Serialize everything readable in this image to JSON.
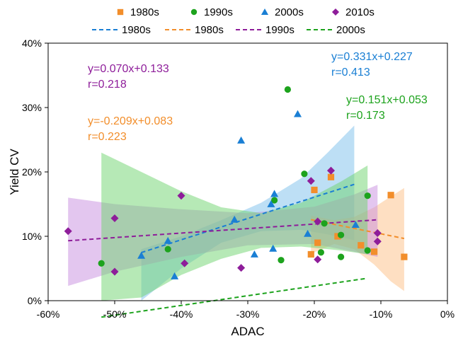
{
  "chart_data": {
    "type": "scatter",
    "xlabel": "ADAC",
    "ylabel": "Yield CV",
    "xlim": [
      -60,
      0
    ],
    "ylim": [
      0,
      40
    ],
    "x_ticks": [
      -60,
      -50,
      -40,
      -30,
      -20,
      -10,
      0
    ],
    "x_tick_labels": [
      "-60%",
      "-50%",
      "-40%",
      "-30%",
      "-20%",
      "-10%",
      "0%"
    ],
    "y_ticks": [
      0,
      10,
      20,
      30,
      40
    ],
    "y_tick_labels": [
      "0%",
      "10%",
      "20%",
      "30%",
      "40%"
    ],
    "grid": false,
    "legend_position": "top-center",
    "series": [
      {
        "name": "1980s",
        "marker": "square",
        "color": "#F28E2B",
        "points": [
          [
            -20.5,
            7.2
          ],
          [
            -20,
            17.2
          ],
          [
            -19.5,
            9.0
          ],
          [
            -17.5,
            19.2
          ],
          [
            -16.5,
            10.0
          ],
          [
            -13,
            8.6
          ],
          [
            -11,
            7.6
          ],
          [
            -8.5,
            16.4
          ],
          [
            -6.5,
            6.8
          ]
        ]
      },
      {
        "name": "1990s",
        "marker": "circle",
        "color": "#1DA31D",
        "points": [
          [
            -52,
            5.8
          ],
          [
            -42,
            8.0
          ],
          [
            -26,
            15.6
          ],
          [
            -25,
            6.3
          ],
          [
            -24,
            32.8
          ],
          [
            -21.5,
            19.7
          ],
          [
            -19,
            7.5
          ],
          [
            -18.5,
            12.0
          ],
          [
            -16,
            10.2
          ],
          [
            -16,
            6.8
          ],
          [
            -12,
            16.3
          ],
          [
            -12,
            7.8
          ]
        ]
      },
      {
        "name": "2000s",
        "marker": "triangle",
        "color": "#1A7FD4",
        "points": [
          [
            -46,
            7.0
          ],
          [
            -42,
            9.3
          ],
          [
            -41,
            3.8
          ],
          [
            -32,
            12.6
          ],
          [
            -31,
            24.9
          ],
          [
            -29,
            7.2
          ],
          [
            -26.5,
            15.0
          ],
          [
            -26.2,
            8.1
          ],
          [
            -26,
            16.6
          ],
          [
            -22.5,
            29.0
          ],
          [
            -21,
            10.4
          ],
          [
            -13.8,
            11.8
          ]
        ]
      },
      {
        "name": "2010s",
        "marker": "diamond",
        "color": "#8E1D9A",
        "points": [
          [
            -57,
            10.8
          ],
          [
            -50,
            12.8
          ],
          [
            -50,
            4.5
          ],
          [
            -40,
            16.3
          ],
          [
            -39.5,
            5.8
          ],
          [
            -31,
            5.1
          ],
          [
            -20.5,
            18.6
          ],
          [
            -19.5,
            12.3
          ],
          [
            -19.5,
            6.4
          ],
          [
            -17.5,
            20.2
          ],
          [
            -10.5,
            10.5
          ],
          [
            -10.5,
            9.2
          ]
        ]
      }
    ],
    "fits": [
      {
        "name": "1980s",
        "color": "#1A7FD4",
        "band_color": "#7CC0EC",
        "slope": 0.331,
        "intercept": 0.227,
        "x_range": [
          -46,
          -14
        ],
        "band_upper": [
          [
            -46,
            8.0
          ],
          [
            -40,
            10.0
          ],
          [
            -34,
            12.5
          ],
          [
            -28,
            15.2
          ],
          [
            -22,
            19.0
          ],
          [
            -18,
            23.0
          ],
          [
            -14,
            27.2
          ]
        ],
        "band_lower": [
          [
            -46,
            0
          ],
          [
            -40,
            5.0
          ],
          [
            -34,
            9.0
          ],
          [
            -28,
            10.8
          ],
          [
            -22,
            11.0
          ],
          [
            -18,
            10.3
          ],
          [
            -14,
            9.4
          ]
        ],
        "label_equation": "y=0.331x+0.227",
        "label_r": "r=0.413"
      },
      {
        "name": "1980s",
        "color": "#F28E2B",
        "band_color": "#FDBF85",
        "slope": -0.209,
        "intercept": 0.083,
        "x_range": [
          -20.5,
          -6.5
        ],
        "band_upper": [
          [
            -20.5,
            13.2
          ],
          [
            -17,
            12.5
          ],
          [
            -14,
            13.0
          ],
          [
            -11,
            14.5
          ],
          [
            -8.5,
            16.2
          ],
          [
            -6.5,
            17.5
          ]
        ],
        "band_lower": [
          [
            -20.5,
            7.3
          ],
          [
            -17,
            8.8
          ],
          [
            -14,
            8.0
          ],
          [
            -11,
            5.6
          ],
          [
            -8.5,
            3.0
          ],
          [
            -6.5,
            1.5
          ]
        ],
        "label_equation": "y=-0.209x+0.083",
        "label_r": "r=0.223"
      },
      {
        "name": "1990s",
        "color": "#8E1D9A",
        "band_color": "#C78DE0",
        "slope": 0.07,
        "intercept": 0.133,
        "x_range": [
          -57,
          -10.5
        ],
        "band_upper": [
          [
            -57,
            16.0
          ],
          [
            -50,
            15.0
          ],
          [
            -40,
            14.2
          ],
          [
            -30,
            13.6
          ],
          [
            -20,
            14.6
          ],
          [
            -14,
            16.5
          ],
          [
            -10.5,
            18.0
          ]
        ],
        "band_lower": [
          [
            -57,
            2.3
          ],
          [
            -50,
            4.5
          ],
          [
            -40,
            6.8
          ],
          [
            -30,
            8.6
          ],
          [
            -20,
            8.8
          ],
          [
            -14,
            7.6
          ],
          [
            -10.5,
            6.8
          ]
        ],
        "label_equation": "y=0.070x+0.133",
        "label_r": "r=0.218"
      },
      {
        "name": "2000s",
        "color": "#1DA31D",
        "band_color": "#6DD46D",
        "slope": 0.151,
        "intercept": 0.053,
        "x_range": [
          -52,
          -12
        ],
        "band_upper": [
          [
            -52,
            23.0
          ],
          [
            -46,
            20.0
          ],
          [
            -40,
            17.0
          ],
          [
            -34,
            14.5
          ],
          [
            -28,
            13.6
          ],
          [
            -22,
            15.2
          ],
          [
            -16,
            18.5
          ],
          [
            -12,
            21.0
          ]
        ],
        "band_lower": [
          [
            -52,
            0
          ],
          [
            -46,
            0.5
          ],
          [
            -40,
            4.0
          ],
          [
            -34,
            6.5
          ],
          [
            -28,
            8.2
          ],
          [
            -22,
            8.4
          ],
          [
            -16,
            7.8
          ],
          [
            -12,
            7.2
          ]
        ],
        "label_equation": "y=0.151x+0.053",
        "label_r": "r=0.173"
      }
    ]
  }
}
